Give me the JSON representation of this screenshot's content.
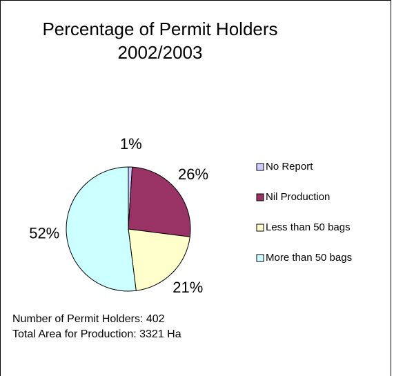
{
  "chart_data": {
    "type": "pie",
    "title": "Percentage of Permit Holders",
    "subtitle": "2002/2003",
    "categories": [
      "No Report",
      "Nil Production",
      "Less than 50 bags",
      "More than 50 bags"
    ],
    "values": [
      1,
      26,
      21,
      52
    ],
    "value_labels": [
      "1%",
      "26%",
      "21%",
      "52%"
    ],
    "colors": [
      "#ccccff",
      "#993366",
      "#ffffcc",
      "#ccffff"
    ],
    "annotations": [
      "Number of Permit Holders: 402",
      "Total Area for Production: 3321 Ha"
    ]
  }
}
